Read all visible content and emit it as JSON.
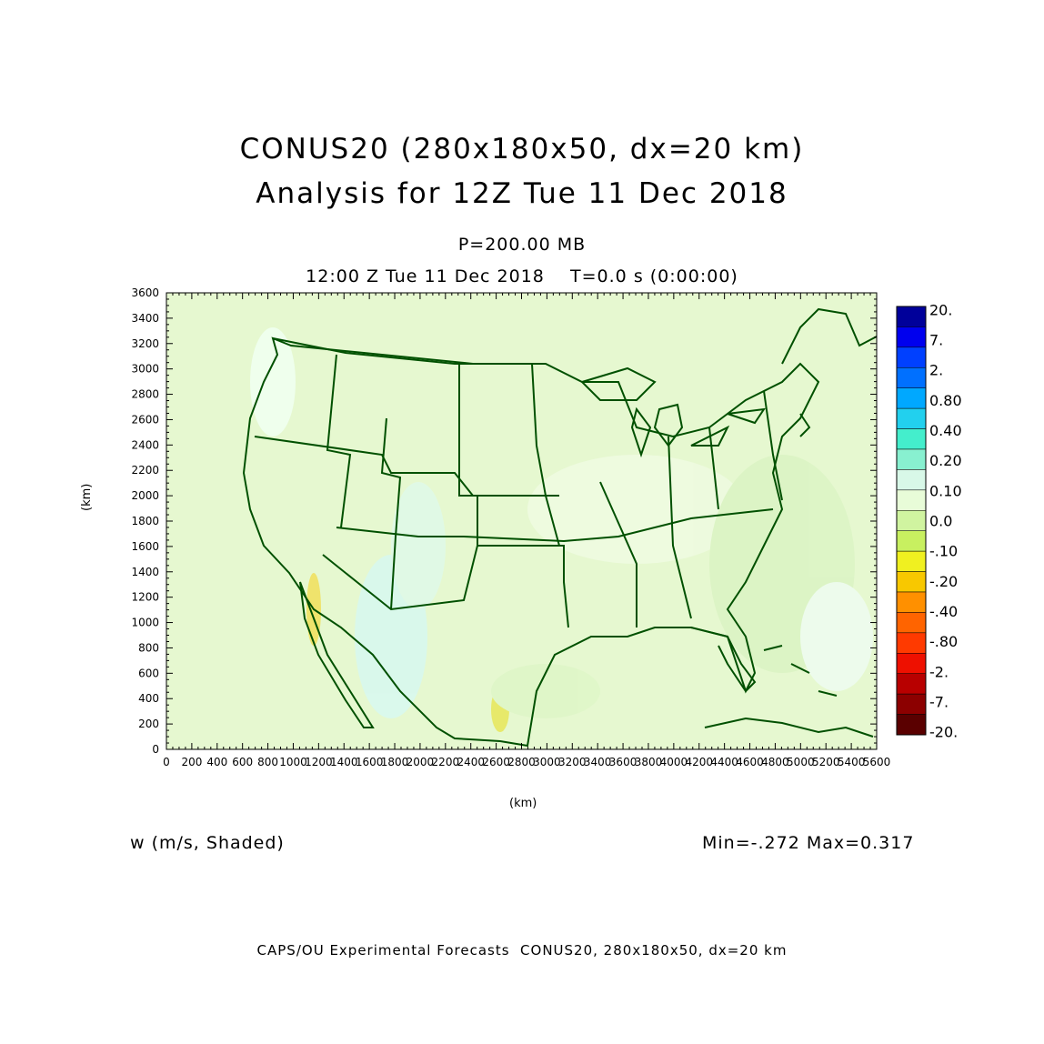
{
  "header": {
    "title_line1": "CONUS20 (280x180x50, dx=20 km)",
    "title_line2": "Analysis for 12Z Tue 11 Dec 2018",
    "level": "P=200.00 MB",
    "valid_time": "12:00 Z Tue 11 Dec 2018    T=0.0 s (0:00:00)"
  },
  "axes": {
    "x_label": "(km)",
    "y_label": "(km)",
    "x_ticks": [
      "0",
      "200",
      "400",
      "600",
      "800",
      "1000",
      "1200",
      "1400",
      "1600",
      "1800",
      "2000",
      "2200",
      "2400",
      "2600",
      "2800",
      "3000",
      "3200",
      "3400",
      "3600",
      "3800",
      "4000",
      "4200",
      "4400",
      "4600",
      "4800",
      "5000",
      "5200",
      "5400",
      "5600"
    ],
    "y_ticks": [
      "0",
      "200",
      "400",
      "600",
      "800",
      "1000",
      "1200",
      "1400",
      "1600",
      "1800",
      "2000",
      "2200",
      "2400",
      "2600",
      "2800",
      "3000",
      "3200",
      "3400",
      "3600"
    ],
    "x_range_km": [
      0,
      5600
    ],
    "y_range_km": [
      0,
      3600
    ]
  },
  "variable_label": "w (m/s, Shaded)",
  "min_max": "Min=-.272 Max=0.317",
  "footer": "CAPS/OU Experimental Forecasts  CONUS20, 280x180x50, dx=20 km",
  "colorbar": {
    "labels": [
      "20.",
      "7.",
      "2.",
      "0.80",
      "0.40",
      "0.20",
      "0.10",
      "0.0",
      "-.10",
      "-.20",
      "-.40",
      "-.80",
      "-2.",
      "-7.",
      "-20."
    ],
    "colors": [
      "#00009a",
      "#0000ee",
      "#0040ff",
      "#0070ff",
      "#00a8ff",
      "#22d0ee",
      "#44eecc",
      "#88f0d0",
      "#d8f8e8",
      "#e8fcd8",
      "#d0f4a0",
      "#c8f060",
      "#f0f020",
      "#f8c800",
      "#ff9000",
      "#ff6400",
      "#ff3a00",
      "#ee1000",
      "#b80000",
      "#8c0000",
      "#5a0000"
    ]
  },
  "map": {
    "background_color": "#e6f8d0",
    "outline_color": "#005000"
  }
}
